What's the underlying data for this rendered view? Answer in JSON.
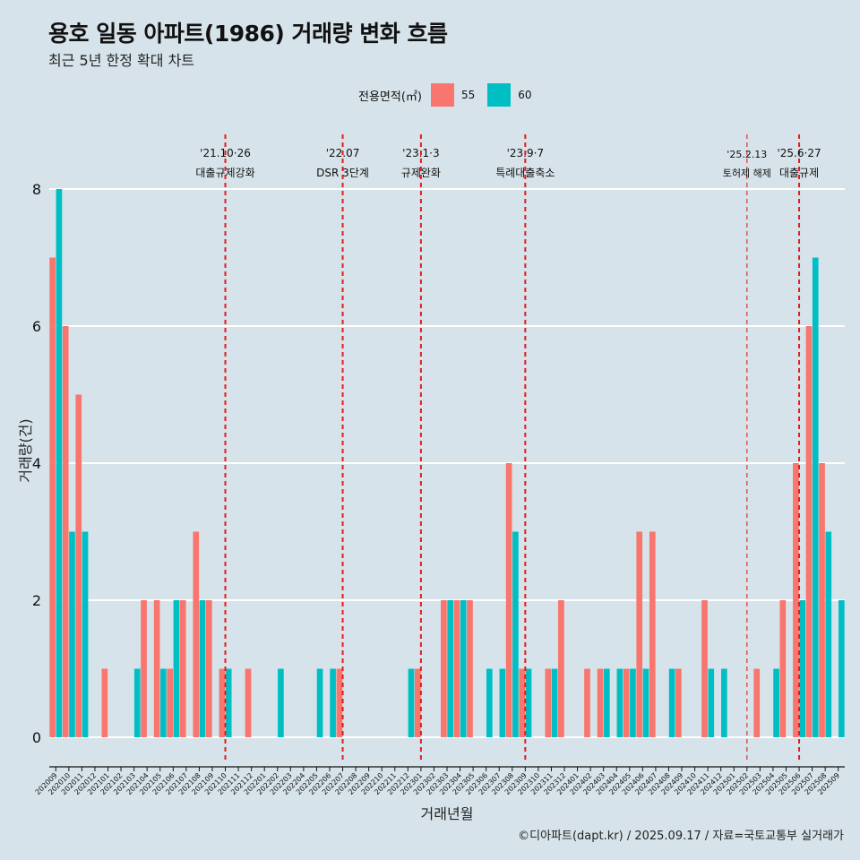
{
  "title": "용호 일동 아파트(1986) 거래량 변화 흐름",
  "subtitle": "최근 5년 한정 확대 차트",
  "legend": {
    "title": "전용면적(㎡)",
    "items": [
      {
        "label": "55",
        "color": "#f8766d"
      },
      {
        "label": "60",
        "color": "#00bfc4"
      }
    ]
  },
  "caption": "©디아파트(dapt.kr) / 2025.09.17 / 자료=국토교통부 실거래가",
  "chart_data": {
    "type": "bar",
    "xlabel": "거래년월",
    "ylabel": "거래량(건)",
    "ylim": [
      0,
      8
    ],
    "yticks": [
      0,
      2,
      4,
      6,
      8
    ],
    "grid": true,
    "legend_position": "top",
    "categories": [
      "202009",
      "202010",
      "202011",
      "202012",
      "202101",
      "202102",
      "202103",
      "202104",
      "202105",
      "202106",
      "202107",
      "202108",
      "202109",
      "202110",
      "202111",
      "202112",
      "202201",
      "202202",
      "202203",
      "202204",
      "202205",
      "202206",
      "202207",
      "202208",
      "202209",
      "202210",
      "202211",
      "202212",
      "202301",
      "202302",
      "202303",
      "202304",
      "202305",
      "202306",
      "202307",
      "202308",
      "202309",
      "202310",
      "202311",
      "202312",
      "202401",
      "202402",
      "202403",
      "202404",
      "202405",
      "202406",
      "202407",
      "202408",
      "202409",
      "202410",
      "202411",
      "202412",
      "202501",
      "202502",
      "202503",
      "202504",
      "202505",
      "202506",
      "202507",
      "202508",
      "202509"
    ],
    "series": [
      {
        "name": "55",
        "color": "#f8766d",
        "values": [
          7,
          6,
          5,
          0,
          1,
          0,
          0,
          2,
          2,
          1,
          2,
          3,
          2,
          1,
          0,
          1,
          0,
          0,
          0,
          0,
          0,
          0,
          1,
          0,
          0,
          0,
          0,
          0,
          1,
          0,
          2,
          2,
          2,
          0,
          0,
          4,
          1,
          0,
          1,
          2,
          0,
          1,
          1,
          0,
          1,
          3,
          3,
          0,
          1,
          0,
          2,
          0,
          0,
          0,
          1,
          0,
          2,
          4,
          6,
          4,
          0
        ]
      },
      {
        "name": "60",
        "color": "#00bfc4",
        "values": [
          8,
          3,
          3,
          0,
          0,
          0,
          1,
          0,
          1,
          2,
          0,
          2,
          0,
          1,
          0,
          0,
          0,
          1,
          0,
          0,
          1,
          1,
          0,
          0,
          0,
          0,
          0,
          1,
          0,
          0,
          2,
          2,
          0,
          1,
          1,
          3,
          1,
          0,
          1,
          0,
          0,
          0,
          1,
          1,
          1,
          1,
          0,
          1,
          0,
          0,
          1,
          1,
          0,
          0,
          0,
          1,
          0,
          2,
          7,
          3,
          2
        ]
      }
    ],
    "annotations": [
      {
        "month": "202110",
        "date": "'21.10·26",
        "label": "대출규제강화"
      },
      {
        "month": "202207",
        "date": "'22.07",
        "label": "DSR 3단계"
      },
      {
        "month": "202301",
        "date": "'23.1·3",
        "label": "규제완화"
      },
      {
        "month": "202309",
        "date": "'23.9·7",
        "label": "특례대출축소"
      },
      {
        "month": "202502",
        "date": "'25.2.13",
        "label": "토허제 해제"
      },
      {
        "month": "202506",
        "date": "'25.6·27",
        "label": "대출규제"
      }
    ]
  }
}
